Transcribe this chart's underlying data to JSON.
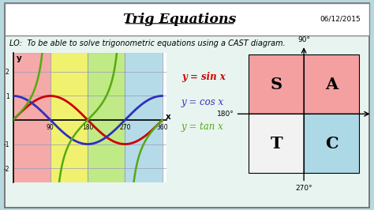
{
  "title": "Trig Equations",
  "date": "06/12/2015",
  "lo_text": "LO:  To be able to solve trigonometric equations using a CAST diagram.",
  "bg_outer": "#b8d8e0",
  "bg_inner": "#e8f4f0",
  "graph_band_colors": [
    "#f4a0a0",
    "#f0f060",
    "#b8e878",
    "#add8e6",
    "#ffffff"
  ],
  "graph_band_edges": [
    0,
    90,
    180,
    270,
    360,
    370
  ],
  "sin_color": "#cc0000",
  "cos_color": "#3030bb",
  "tan_color": "#55aa10",
  "legend_sin": "y = sin x",
  "legend_cos": "y = cos x",
  "legend_tan": "y = tan x",
  "cast_SA_color": "#f4a0a0",
  "cast_T_color": "#f2f2f2",
  "cast_C_color": "#add8e6",
  "ylim": [
    -2.6,
    2.8
  ],
  "xlim": [
    0,
    370
  ]
}
